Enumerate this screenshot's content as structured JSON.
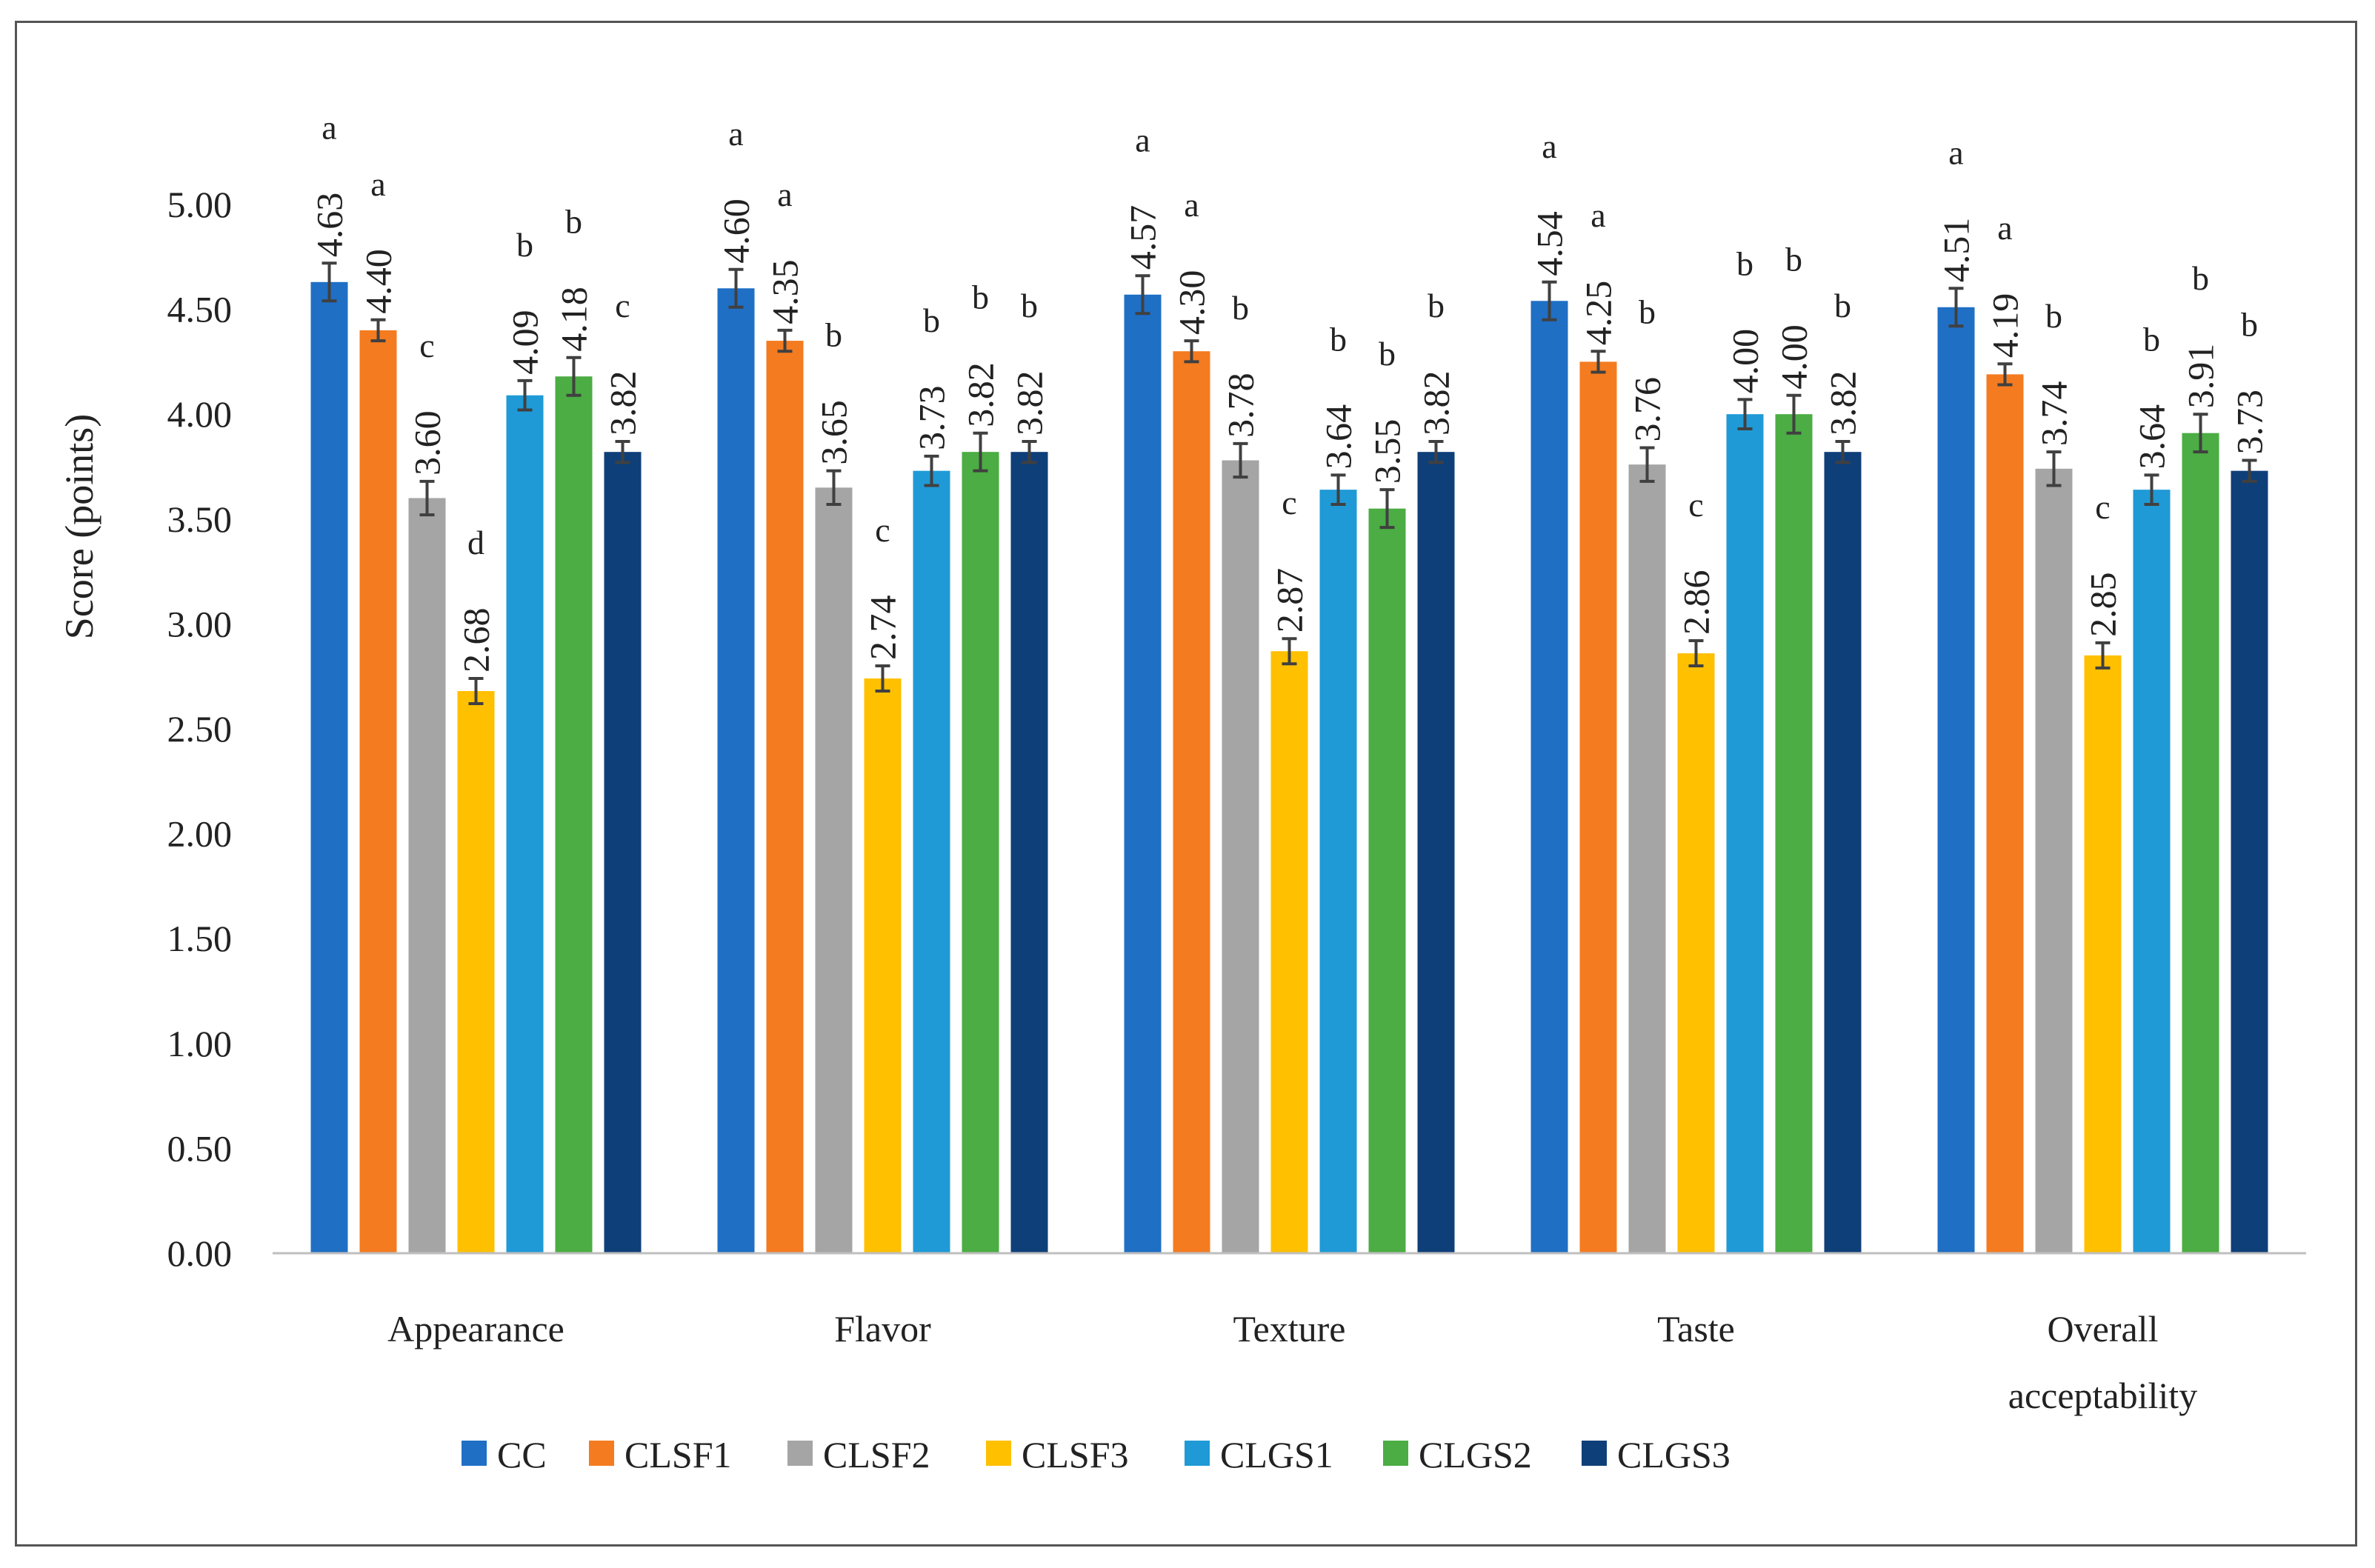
{
  "chart_data": {
    "type": "bar",
    "ylabel": "Score (points)",
    "xlabel": "",
    "ylim": [
      0,
      5
    ],
    "yticks": [
      "0.00",
      "0.50",
      "1.00",
      "1.50",
      "2.00",
      "2.50",
      "3.00",
      "3.50",
      "4.00",
      "4.50",
      "5.00"
    ],
    "categories": [
      "Appearance",
      "Flavor",
      "Texture",
      "Taste",
      "Overall acceptability"
    ],
    "grid": false,
    "legend_position": "bottom",
    "series": [
      {
        "name": "CC",
        "color": "#1f6fc5",
        "values": [
          4.63,
          4.6,
          4.57,
          4.54,
          4.51
        ],
        "error": [
          0.09,
          0.09,
          0.09,
          0.09,
          0.09
        ],
        "letters": [
          "a",
          "a",
          "a",
          "a",
          "a"
        ]
      },
      {
        "name": "CLSF1",
        "color": "#f47b20",
        "values": [
          4.4,
          4.35,
          4.3,
          4.25,
          4.19
        ],
        "error": [
          0.05,
          0.05,
          0.05,
          0.05,
          0.05
        ],
        "letters": [
          "a",
          "a",
          "a",
          "a",
          "a"
        ]
      },
      {
        "name": "CLSF2",
        "color": "#a5a5a5",
        "values": [
          3.6,
          3.65,
          3.78,
          3.76,
          3.74
        ],
        "error": [
          0.08,
          0.08,
          0.08,
          0.08,
          0.08
        ],
        "letters": [
          "c",
          "b",
          "b",
          "b",
          "b"
        ]
      },
      {
        "name": "CLSF3",
        "color": "#ffc000",
        "values": [
          2.68,
          2.74,
          2.87,
          2.86,
          2.85
        ],
        "error": [
          0.06,
          0.06,
          0.06,
          0.06,
          0.06
        ],
        "letters": [
          "d",
          "c",
          "c",
          "c",
          "c"
        ]
      },
      {
        "name": "CLGS1",
        "color": "#1f9ad6",
        "values": [
          4.09,
          3.73,
          3.64,
          4.0,
          3.64
        ],
        "error": [
          0.07,
          0.07,
          0.07,
          0.07,
          0.07
        ],
        "letters": [
          "b",
          "b",
          "b",
          "b",
          "b"
        ]
      },
      {
        "name": "CLGS2",
        "color": "#4bad43",
        "values": [
          4.18,
          3.82,
          3.55,
          4.0,
          3.91
        ],
        "error": [
          0.09,
          0.09,
          0.09,
          0.09,
          0.09
        ],
        "letters": [
          "b",
          "b",
          "b",
          "b",
          "b"
        ]
      },
      {
        "name": "CLGS3",
        "color": "#0f3f78",
        "values": [
          3.82,
          3.82,
          3.82,
          3.82,
          3.73
        ],
        "error": [
          0.05,
          0.05,
          0.05,
          0.05,
          0.05
        ],
        "letters": [
          "c",
          "b",
          "b",
          "b",
          "b"
        ]
      }
    ]
  }
}
